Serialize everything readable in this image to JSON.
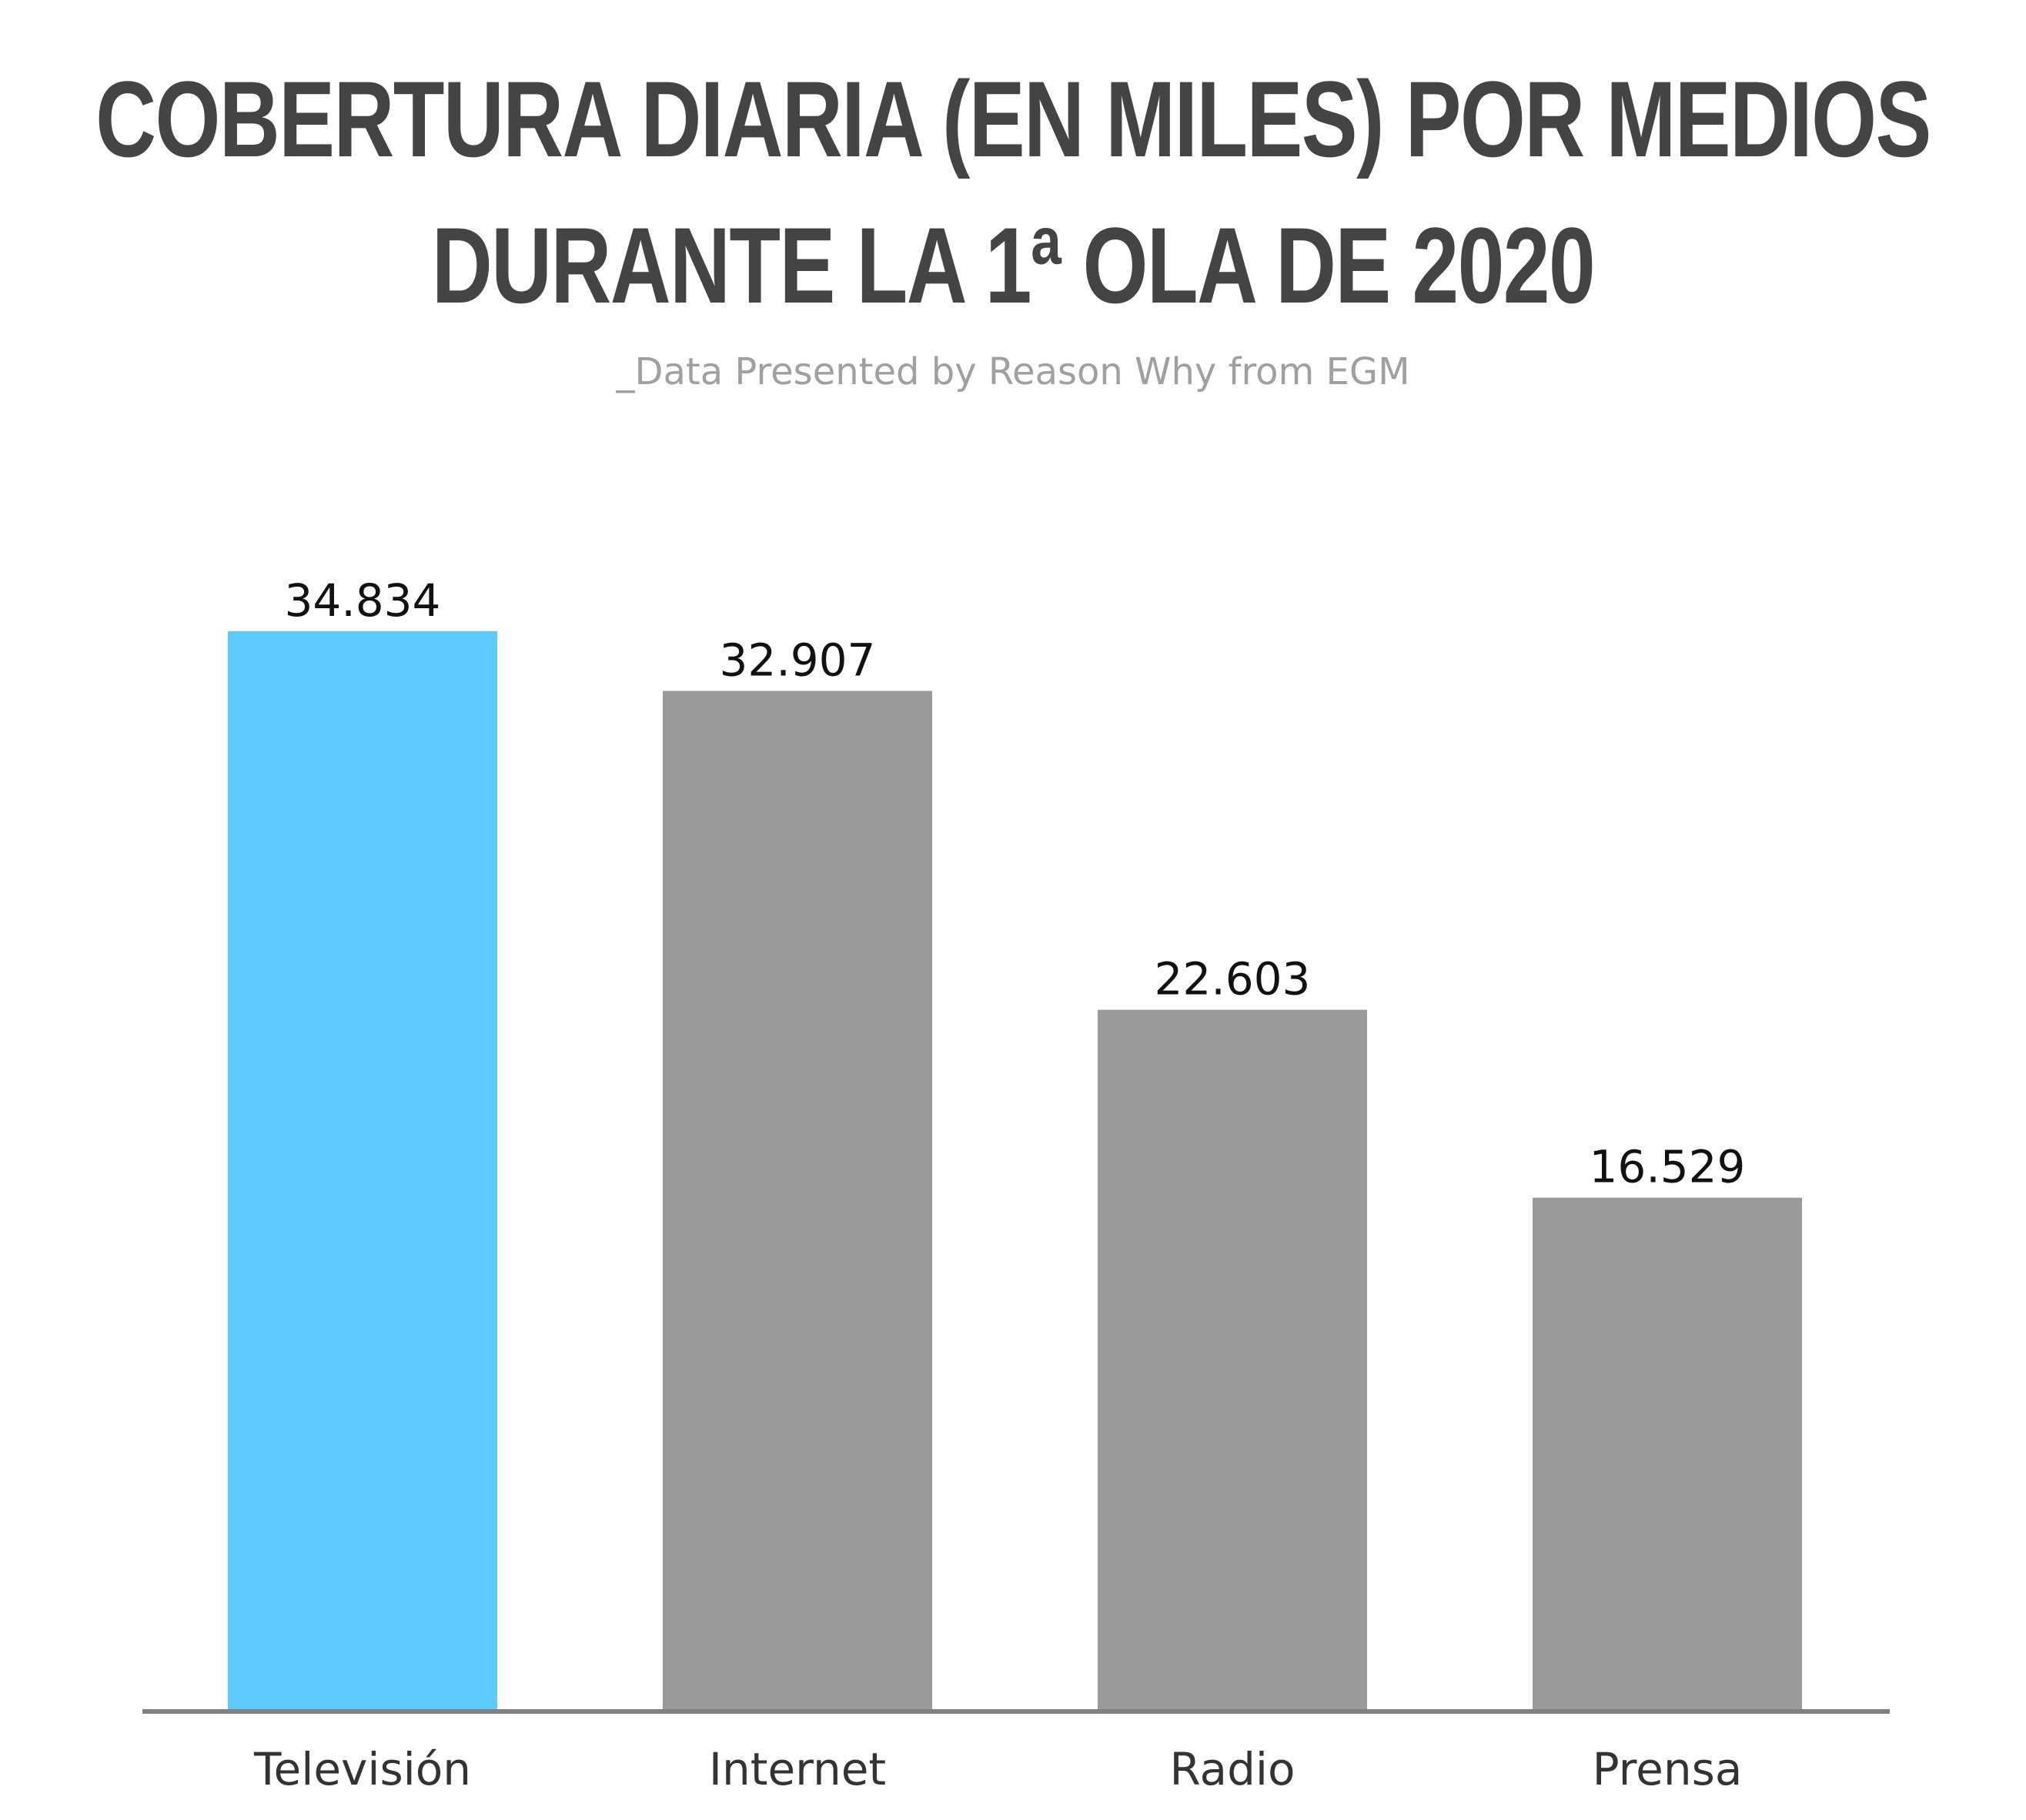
{
  "title_lines": [
    "COBERTURA DIARIA (EN MILES) POR MEDIOS",
    "DURANTE LA 1ª OLA DE 2020"
  ],
  "subtitle": "_Data Presented by Reason Why from EGM",
  "colors": {
    "highlight": "#5BCBFF",
    "bar": "#9A9A9A",
    "axis": "#808080",
    "title": "#444444",
    "subtitle": "#A0A0A0",
    "value_label": "#111111",
    "category_label": "#333333"
  },
  "chart_data": {
    "type": "bar",
    "title": "COBERTURA DIARIA (EN MILES) POR MEDIOS DURANTE LA 1ª OLA DE 2020",
    "subtitle": "_Data Presented by Reason Why from EGM",
    "categories": [
      "Televisión",
      "Internet",
      "Radio",
      "Prensa"
    ],
    "values": [
      34834,
      32907,
      22603,
      16529
    ],
    "value_labels": [
      "34.834",
      "32.907",
      "22.603",
      "16.529"
    ],
    "highlight_index": 0,
    "xlabel": "",
    "ylabel": "",
    "ylim": [
      0,
      34834
    ],
    "grid": false,
    "legend": "none"
  }
}
